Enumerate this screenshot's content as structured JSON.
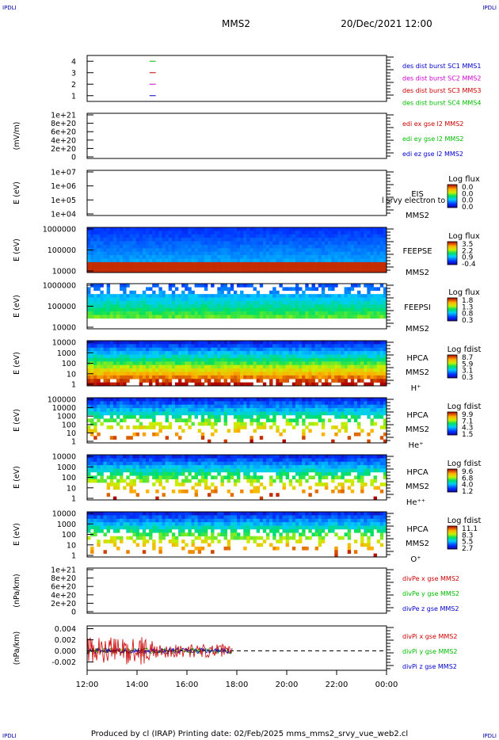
{
  "corner_label": "IPDLI",
  "header": {
    "spacecraft": "MMS2",
    "datetime": "20/Dec/2021 12:00"
  },
  "footer": {
    "text": "Produced by cl (IRAP)   Printing date: 02/Feb/2025   mms_mms2_srvy_vue_web2.cl"
  },
  "chart_data": [
    {
      "type": "line",
      "id": "burst",
      "ylim": [
        0.5,
        4.5
      ],
      "yticks": [
        "1",
        "2",
        "3",
        "4"
      ],
      "legend": [
        {
          "text": "des dist burst SC1 MMS1",
          "color": "#0000cc"
        },
        {
          "text": "des dist burst SC2 MMS2",
          "color": "#cc00cc"
        },
        {
          "text": "des dist burst SC3 MMS3",
          "color": "#cc0000"
        },
        {
          "text": "des dist burst SC4 MMS4",
          "color": "#00bb00"
        }
      ],
      "series": [
        {
          "level": 4,
          "start": "14:30",
          "end": "14:45",
          "color": "#00bb00"
        },
        {
          "level": 3,
          "start": "14:30",
          "end": "14:45",
          "color": "#cc0000"
        },
        {
          "level": 2,
          "start": "14:30",
          "end": "14:45",
          "color": "#cc00cc"
        },
        {
          "level": 1,
          "start": "14:30",
          "end": "14:45",
          "color": "#0000cc"
        }
      ]
    },
    {
      "type": "line",
      "id": "edi",
      "ylabel": "(mV/m)",
      "yticks": [
        "1e+21",
        "8e+20",
        "6e+20",
        "4e+20",
        "2e+20",
        "0"
      ],
      "ylim": [
        0,
        1e+21
      ],
      "zero_line": true,
      "legend": [
        {
          "text": "edi ex gse l2 MMS2",
          "color": "#cc0000"
        },
        {
          "text": "edi ey gse l2 MMS2",
          "color": "#00bb00"
        },
        {
          "text": "edi ez gse l2 MMS2",
          "color": "#0000cc"
        }
      ]
    },
    {
      "type": "heatmap",
      "id": "eis",
      "ylabel": "E (eV)",
      "scale": "log",
      "yticks": [
        "1e+07",
        "1e+06",
        "1e+05",
        "1e+04"
      ],
      "ylim": [
        10000.0,
        10000000.0
      ],
      "labels": [
        "EIS",
        "MMS2"
      ],
      "overlay_text": "l srvy electron to",
      "colorbar": {
        "title": "Log flux",
        "ticks": [
          "0.0",
          "0.0",
          "0.0",
          "0.0"
        ]
      },
      "coverage": null
    },
    {
      "type": "heatmap",
      "id": "feeps_e",
      "ylabel": "E (eV)",
      "scale": "log",
      "yticks": [
        "1000000",
        "100000",
        "10000"
      ],
      "ylim": [
        10000.0,
        1000000.0
      ],
      "labels": [
        "FEEPSE",
        "MMS2"
      ],
      "colorbar": {
        "title": "Log flux",
        "ticks": [
          "3.5",
          "2.2",
          "0.9",
          "-0.4"
        ]
      },
      "coverage": [
        "12:00",
        "24:00"
      ]
    },
    {
      "type": "heatmap",
      "id": "feeps_i",
      "ylabel": "E (eV)",
      "scale": "log",
      "yticks": [
        "1000000",
        "100000",
        "10000"
      ],
      "ylim": [
        10000.0,
        1000000.0
      ],
      "labels": [
        "FEEPSI",
        "MMS2"
      ],
      "colorbar": {
        "title": "Log flux",
        "ticks": [
          "1.8",
          "1.3",
          "0.8",
          "0.3"
        ]
      },
      "coverage": [
        "12:00",
        "24:00"
      ]
    },
    {
      "type": "heatmap",
      "id": "hpca_h",
      "ylabel": "E (eV)",
      "scale": "log",
      "yticks": [
        "10000",
        "1000",
        "100",
        "10",
        "1"
      ],
      "ylim": [
        1,
        40000
      ],
      "labels": [
        "HPCA",
        "MMS2",
        "H⁺"
      ],
      "colorbar": {
        "title": "Log fdist",
        "ticks": [
          "8.7",
          "5.9",
          "3.1",
          "0.3"
        ]
      },
      "coverage": [
        "12:00",
        "24:00"
      ]
    },
    {
      "type": "heatmap",
      "id": "hpca_he",
      "ylabel": "E (eV)",
      "scale": "log",
      "yticks": [
        "100000",
        "10000",
        "1000",
        "100",
        "10",
        "1"
      ],
      "ylim": [
        1,
        100000
      ],
      "labels": [
        "HPCA",
        "MMS2",
        "He⁺"
      ],
      "colorbar": {
        "title": "Log fdist",
        "ticks": [
          "9.9",
          "7.1",
          "4.3",
          "1.5"
        ]
      },
      "coverage": [
        "12:00",
        "24:00"
      ]
    },
    {
      "type": "heatmap",
      "id": "hpca_hepp",
      "ylabel": "E (eV)",
      "scale": "log",
      "yticks": [
        "10000",
        "1000",
        "100",
        "10",
        "1"
      ],
      "ylim": [
        1,
        40000
      ],
      "labels": [
        "HPCA",
        "MMS2",
        "He⁺⁺"
      ],
      "colorbar": {
        "title": "Log fdist",
        "ticks": [
          "9.6",
          "6.8",
          "4.0",
          "1.2"
        ]
      },
      "coverage": [
        "12:00",
        "24:00"
      ]
    },
    {
      "type": "heatmap",
      "id": "hpca_o",
      "ylabel": "E (eV)",
      "scale": "log",
      "yticks": [
        "10000",
        "1000",
        "100",
        "10",
        "1"
      ],
      "ylim": [
        1,
        40000
      ],
      "labels": [
        "HPCA",
        "MMS2",
        "O⁺"
      ],
      "colorbar": {
        "title": "Log fdist",
        "ticks": [
          "11.1",
          "8.3",
          "5.5",
          "2.7"
        ]
      },
      "coverage": [
        "12:00",
        "24:00"
      ]
    },
    {
      "type": "line",
      "id": "divpe",
      "ylabel": "(nPa/km)",
      "yticks": [
        "1e+21",
        "8e+20",
        "6e+20",
        "4e+20",
        "2e+20",
        "0"
      ],
      "ylim": [
        0,
        1e+21
      ],
      "zero_line": true,
      "legend": [
        {
          "text": "divPe x gse MMS2",
          "color": "#cc0000"
        },
        {
          "text": "divPe y gse MMS2",
          "color": "#00bb00"
        },
        {
          "text": "divPe z gse MMS2",
          "color": "#0000cc"
        }
      ]
    },
    {
      "type": "line",
      "id": "divpi",
      "ylabel": "(nPa/km)",
      "yticks": [
        "0.004",
        "0.002",
        "0.000",
        "-0.002"
      ],
      "ylim": [
        -0.0035,
        0.0045
      ],
      "zero_line": true,
      "data_extent": [
        "12:00",
        "17:50"
      ],
      "legend": [
        {
          "text": "divPi x gse MMS2",
          "color": "#cc0000"
        },
        {
          "text": "divPi y gse MMS2",
          "color": "#00bb00"
        },
        {
          "text": "divPi z gse MMS2",
          "color": "#0000cc"
        }
      ]
    }
  ],
  "x_axis": {
    "ticks": [
      "12:00",
      "14:00",
      "16:00",
      "18:00",
      "20:00",
      "22:00",
      "00:00"
    ]
  }
}
